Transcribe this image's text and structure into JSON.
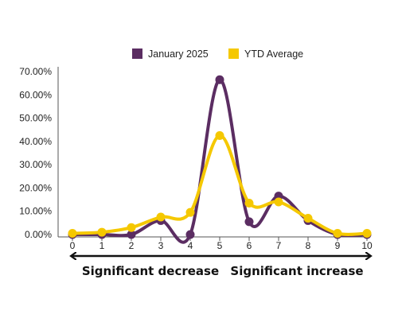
{
  "chart_data": {
    "type": "line",
    "title": "",
    "xlabel": "",
    "ylabel": "",
    "x": [
      0,
      1,
      2,
      3,
      4,
      5,
      6,
      7,
      8,
      9,
      10
    ],
    "x_tick_labels": [
      "0",
      "1",
      "2",
      "3",
      "4",
      "5",
      "6",
      "7",
      "8",
      "9",
      "10"
    ],
    "ylim": [
      0,
      0.7
    ],
    "y_tick_values": [
      0,
      0.1,
      0.2,
      0.3,
      0.4,
      0.5,
      0.6,
      0.7
    ],
    "y_tick_labels": [
      "0.00%",
      "10.00%",
      "20.00%",
      "30.00%",
      "40.00%",
      "50.00%",
      "60.00%",
      "70.00%"
    ],
    "grid": false,
    "smooth": true,
    "legend_position": "top",
    "series": [
      {
        "name": "January 2025",
        "color": "#5b2d62",
        "values": [
          0.0,
          0.0,
          0.0,
          0.06,
          0.0,
          0.665,
          0.055,
          0.165,
          0.06,
          0.0,
          0.0
        ]
      },
      {
        "name": "YTD Average",
        "color": "#f5c800",
        "values": [
          0.005,
          0.01,
          0.03,
          0.075,
          0.095,
          0.425,
          0.135,
          0.14,
          0.07,
          0.005,
          0.005
        ]
      }
    ],
    "annotations": {
      "left": "Significant decrease",
      "right": "Significant increase"
    }
  }
}
